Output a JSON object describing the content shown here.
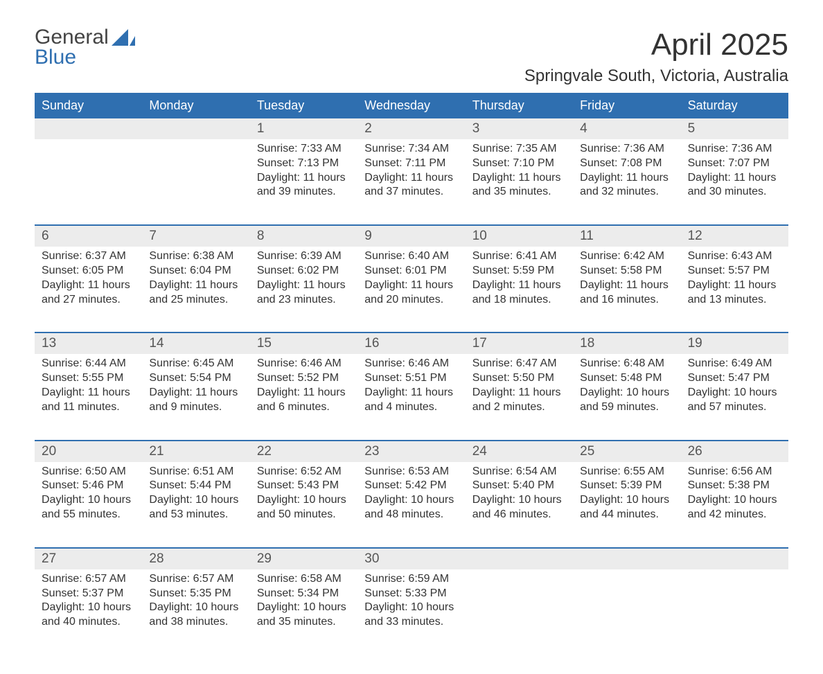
{
  "logo": {
    "general": "General",
    "blue": "Blue",
    "accent_color": "#2f6fb0"
  },
  "title": "April 2025",
  "location": "Springvale South, Victoria, Australia",
  "colors": {
    "header_bg": "#2f6fb0",
    "header_text": "#ffffff",
    "daterow_bg": "#ececec",
    "text": "#333333",
    "rule": "#2f6fb0"
  },
  "days": [
    "Sunday",
    "Monday",
    "Tuesday",
    "Wednesday",
    "Thursday",
    "Friday",
    "Saturday"
  ],
  "weeks": [
    {
      "dates": [
        "",
        "",
        "1",
        "2",
        "3",
        "4",
        "5"
      ],
      "cells": [
        {},
        {},
        {
          "sunrise": "Sunrise: 7:33 AM",
          "sunset": "Sunset: 7:13 PM",
          "daylight": "Daylight: 11 hours and 39 minutes."
        },
        {
          "sunrise": "Sunrise: 7:34 AM",
          "sunset": "Sunset: 7:11 PM",
          "daylight": "Daylight: 11 hours and 37 minutes."
        },
        {
          "sunrise": "Sunrise: 7:35 AM",
          "sunset": "Sunset: 7:10 PM",
          "daylight": "Daylight: 11 hours and 35 minutes."
        },
        {
          "sunrise": "Sunrise: 7:36 AM",
          "sunset": "Sunset: 7:08 PM",
          "daylight": "Daylight: 11 hours and 32 minutes."
        },
        {
          "sunrise": "Sunrise: 7:36 AM",
          "sunset": "Sunset: 7:07 PM",
          "daylight": "Daylight: 11 hours and 30 minutes."
        }
      ]
    },
    {
      "dates": [
        "6",
        "7",
        "8",
        "9",
        "10",
        "11",
        "12"
      ],
      "cells": [
        {
          "sunrise": "Sunrise: 6:37 AM",
          "sunset": "Sunset: 6:05 PM",
          "daylight": "Daylight: 11 hours and 27 minutes."
        },
        {
          "sunrise": "Sunrise: 6:38 AM",
          "sunset": "Sunset: 6:04 PM",
          "daylight": "Daylight: 11 hours and 25 minutes."
        },
        {
          "sunrise": "Sunrise: 6:39 AM",
          "sunset": "Sunset: 6:02 PM",
          "daylight": "Daylight: 11 hours and 23 minutes."
        },
        {
          "sunrise": "Sunrise: 6:40 AM",
          "sunset": "Sunset: 6:01 PM",
          "daylight": "Daylight: 11 hours and 20 minutes."
        },
        {
          "sunrise": "Sunrise: 6:41 AM",
          "sunset": "Sunset: 5:59 PM",
          "daylight": "Daylight: 11 hours and 18 minutes."
        },
        {
          "sunrise": "Sunrise: 6:42 AM",
          "sunset": "Sunset: 5:58 PM",
          "daylight": "Daylight: 11 hours and 16 minutes."
        },
        {
          "sunrise": "Sunrise: 6:43 AM",
          "sunset": "Sunset: 5:57 PM",
          "daylight": "Daylight: 11 hours and 13 minutes."
        }
      ]
    },
    {
      "dates": [
        "13",
        "14",
        "15",
        "16",
        "17",
        "18",
        "19"
      ],
      "cells": [
        {
          "sunrise": "Sunrise: 6:44 AM",
          "sunset": "Sunset: 5:55 PM",
          "daylight": "Daylight: 11 hours and 11 minutes."
        },
        {
          "sunrise": "Sunrise: 6:45 AM",
          "sunset": "Sunset: 5:54 PM",
          "daylight": "Daylight: 11 hours and 9 minutes."
        },
        {
          "sunrise": "Sunrise: 6:46 AM",
          "sunset": "Sunset: 5:52 PM",
          "daylight": "Daylight: 11 hours and 6 minutes."
        },
        {
          "sunrise": "Sunrise: 6:46 AM",
          "sunset": "Sunset: 5:51 PM",
          "daylight": "Daylight: 11 hours and 4 minutes."
        },
        {
          "sunrise": "Sunrise: 6:47 AM",
          "sunset": "Sunset: 5:50 PM",
          "daylight": "Daylight: 11 hours and 2 minutes."
        },
        {
          "sunrise": "Sunrise: 6:48 AM",
          "sunset": "Sunset: 5:48 PM",
          "daylight": "Daylight: 10 hours and 59 minutes."
        },
        {
          "sunrise": "Sunrise: 6:49 AM",
          "sunset": "Sunset: 5:47 PM",
          "daylight": "Daylight: 10 hours and 57 minutes."
        }
      ]
    },
    {
      "dates": [
        "20",
        "21",
        "22",
        "23",
        "24",
        "25",
        "26"
      ],
      "cells": [
        {
          "sunrise": "Sunrise: 6:50 AM",
          "sunset": "Sunset: 5:46 PM",
          "daylight": "Daylight: 10 hours and 55 minutes."
        },
        {
          "sunrise": "Sunrise: 6:51 AM",
          "sunset": "Sunset: 5:44 PM",
          "daylight": "Daylight: 10 hours and 53 minutes."
        },
        {
          "sunrise": "Sunrise: 6:52 AM",
          "sunset": "Sunset: 5:43 PM",
          "daylight": "Daylight: 10 hours and 50 minutes."
        },
        {
          "sunrise": "Sunrise: 6:53 AM",
          "sunset": "Sunset: 5:42 PM",
          "daylight": "Daylight: 10 hours and 48 minutes."
        },
        {
          "sunrise": "Sunrise: 6:54 AM",
          "sunset": "Sunset: 5:40 PM",
          "daylight": "Daylight: 10 hours and 46 minutes."
        },
        {
          "sunrise": "Sunrise: 6:55 AM",
          "sunset": "Sunset: 5:39 PM",
          "daylight": "Daylight: 10 hours and 44 minutes."
        },
        {
          "sunrise": "Sunrise: 6:56 AM",
          "sunset": "Sunset: 5:38 PM",
          "daylight": "Daylight: 10 hours and 42 minutes."
        }
      ]
    },
    {
      "dates": [
        "27",
        "28",
        "29",
        "30",
        "",
        "",
        ""
      ],
      "cells": [
        {
          "sunrise": "Sunrise: 6:57 AM",
          "sunset": "Sunset: 5:37 PM",
          "daylight": "Daylight: 10 hours and 40 minutes."
        },
        {
          "sunrise": "Sunrise: 6:57 AM",
          "sunset": "Sunset: 5:35 PM",
          "daylight": "Daylight: 10 hours and 38 minutes."
        },
        {
          "sunrise": "Sunrise: 6:58 AM",
          "sunset": "Sunset: 5:34 PM",
          "daylight": "Daylight: 10 hours and 35 minutes."
        },
        {
          "sunrise": "Sunrise: 6:59 AM",
          "sunset": "Sunset: 5:33 PM",
          "daylight": "Daylight: 10 hours and 33 minutes."
        },
        {},
        {},
        {}
      ]
    }
  ]
}
